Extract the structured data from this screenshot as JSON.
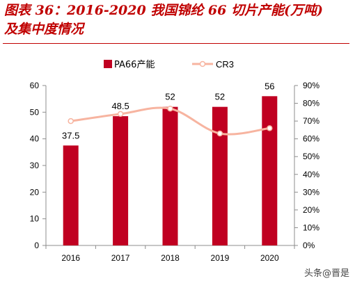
{
  "title_line1": "图表 36：2016-2020 我国锦纶 66 切片产能(万吨)",
  "title_line2": "及集中度情况",
  "watermark": "头条@晋是",
  "chart_data": {
    "type": "bar",
    "categories": [
      "2016",
      "2017",
      "2018",
      "2019",
      "2020"
    ],
    "series": [
      {
        "name": "PA66产能",
        "type": "bar",
        "axis": "left",
        "values": [
          37.5,
          48.5,
          52,
          52,
          56
        ],
        "color": "#c00021"
      },
      {
        "name": "CR3",
        "type": "line",
        "axis": "right",
        "values": [
          0.7,
          0.74,
          0.77,
          0.63,
          0.66
        ],
        "color": "#f7b4a0"
      }
    ],
    "data_labels": [
      "37.5",
      "48.5",
      "52",
      "52",
      "56"
    ],
    "ylim_left": [
      0,
      60
    ],
    "yticks_left": [
      "0",
      "10",
      "20",
      "30",
      "40",
      "50",
      "60"
    ],
    "ylim_right": [
      0,
      0.9
    ],
    "yticks_right": [
      "0%",
      "10%",
      "20%",
      "30%",
      "40%",
      "50%",
      "60%",
      "70%",
      "80%",
      "90%"
    ],
    "legend": [
      "PA66产能",
      "CR3"
    ],
    "legend_position": "top-center",
    "grid": false
  }
}
